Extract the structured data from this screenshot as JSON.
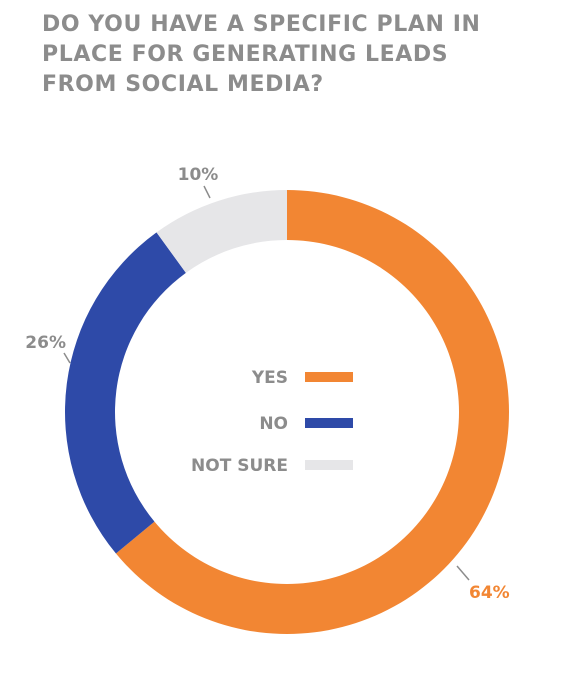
{
  "title_lines": [
    "DO YOU HAVE A SPECIFIC PLAN IN",
    "PLACE FOR GENERATING LEADS",
    "FROM SOCIAL MEDIA?"
  ],
  "chart_data": {
    "type": "pie",
    "style": "donut",
    "title": "DO YOU HAVE A SPECIFIC PLAN IN PLACE FOR GENERATING LEADS FROM SOCIAL MEDIA?",
    "categories": [
      "YES",
      "NO",
      "NOT SURE"
    ],
    "values": [
      64,
      26,
      10
    ],
    "value_labels": [
      "64%",
      "26%",
      "10%"
    ],
    "colors": [
      "#f28633",
      "#2e4aa8",
      "#e6e6e8"
    ],
    "legend_position": "center"
  },
  "label_color": "#8c8c8c"
}
